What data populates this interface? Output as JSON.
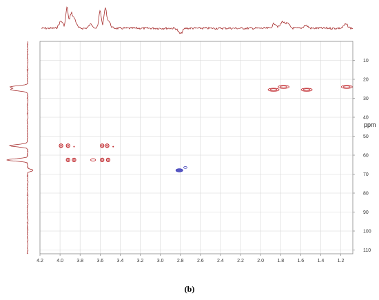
{
  "caption": "(b)",
  "chart_data": {
    "type": "scatter",
    "subtype": "2D NMR contour plot (HSQC-type) with 1D projections",
    "x_axis": {
      "label": "",
      "unit": "ppm",
      "range": [
        4.2,
        1.08
      ],
      "reversed": true,
      "ticks": [
        4.2,
        4.0,
        3.8,
        3.6,
        3.4,
        3.2,
        3.0,
        2.8,
        2.6,
        2.4,
        2.2,
        2.0,
        1.8,
        1.6,
        1.4,
        1.2
      ],
      "tick_labels": [
        "4.2",
        "4.0",
        "3.8",
        "3.6",
        "3.4",
        "3.2",
        "3.0",
        "2.8",
        "2.6",
        "2.4",
        "2.2",
        "2.0",
        "1.8",
        "1.6",
        "1.4",
        "1.2"
      ]
    },
    "y_axis": {
      "label": "ppm",
      "range": [
        0,
        112
      ],
      "reversed": true,
      "position": "right",
      "ticks": [
        10,
        20,
        30,
        40,
        50,
        60,
        70,
        80,
        90,
        100,
        110
      ],
      "tick_labels": [
        "10",
        "20",
        "30",
        "40",
        "50",
        "60",
        "70",
        "80",
        "90",
        "100",
        "110"
      ]
    },
    "grid": true,
    "colors": {
      "positive": "#c0282d",
      "negative": "#3a3ab8",
      "grid": "#d6d6d6",
      "projection": "#a52a2a"
    },
    "series": [
      {
        "phase": "positive",
        "points": [
          {
            "x": 3.99,
            "y": 55.0,
            "shape": "ring"
          },
          {
            "x": 3.92,
            "y": 55.0,
            "shape": "ring"
          },
          {
            "x": 3.86,
            "y": 55.5,
            "shape": "dot"
          },
          {
            "x": 3.92,
            "y": 62.5,
            "shape": "ring"
          },
          {
            "x": 3.86,
            "y": 62.5,
            "shape": "ring"
          },
          {
            "x": 3.67,
            "y": 62.5,
            "shape": "oval"
          },
          {
            "x": 3.58,
            "y": 55.0,
            "shape": "ring"
          },
          {
            "x": 3.53,
            "y": 55.0,
            "shape": "ring"
          },
          {
            "x": 3.47,
            "y": 55.5,
            "shape": "dot"
          },
          {
            "x": 3.58,
            "y": 62.5,
            "shape": "ring"
          },
          {
            "x": 3.52,
            "y": 62.5,
            "shape": "ring"
          },
          {
            "x": 1.87,
            "y": 25.5,
            "shape": "wide"
          },
          {
            "x": 1.77,
            "y": 24.0,
            "shape": "wide"
          },
          {
            "x": 1.54,
            "y": 25.5,
            "shape": "wide"
          },
          {
            "x": 1.14,
            "y": 24.0,
            "shape": "wide"
          }
        ]
      },
      {
        "phase": "negative",
        "points": [
          {
            "x": 2.81,
            "y": 68.0,
            "shape": "filled"
          },
          {
            "x": 2.75,
            "y": 66.5,
            "shape": "small"
          }
        ]
      }
    ],
    "projection_peaks_x": [
      {
        "x": 3.99,
        "h": 0.32
      },
      {
        "x": 3.93,
        "h": 0.95
      },
      {
        "x": 3.89,
        "h": 0.55
      },
      {
        "x": 3.86,
        "h": 0.45
      },
      {
        "x": 3.6,
        "h": 0.8
      },
      {
        "x": 3.55,
        "h": 0.8
      },
      {
        "x": 3.52,
        "h": 0.35
      },
      {
        "x": 3.69,
        "h": 0.18
      },
      {
        "x": 1.86,
        "h": 0.22
      },
      {
        "x": 1.78,
        "h": 0.3
      },
      {
        "x": 1.73,
        "h": 0.2
      },
      {
        "x": 1.55,
        "h": 0.14
      },
      {
        "x": 1.15,
        "h": 0.18
      },
      {
        "x": 2.8,
        "h": -0.25
      }
    ],
    "projection_peaks_y": [
      {
        "y": 24.0,
        "h": 0.8
      },
      {
        "y": 25.5,
        "h": 0.8
      },
      {
        "y": 55.0,
        "h": 0.85
      },
      {
        "y": 62.5,
        "h": 1.0
      },
      {
        "y": 68.0,
        "h": -0.25
      }
    ]
  }
}
